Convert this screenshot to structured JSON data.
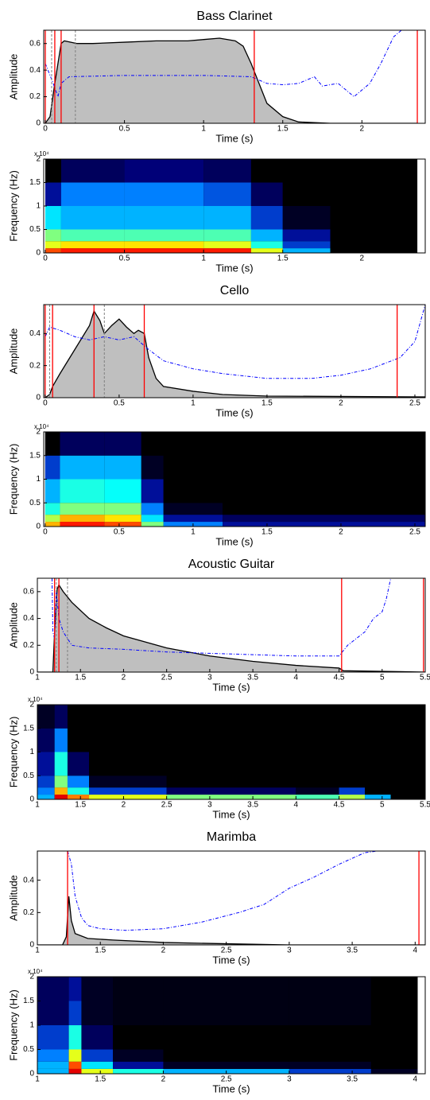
{
  "chart_data": [
    {
      "type": "envelope",
      "title": "Bass Clarinet",
      "xlabel": "Time (s)",
      "ylabel": "Amplitude",
      "xlim": [
        -0.01,
        2.4
      ],
      "ylim": [
        0,
        0.7
      ],
      "xticks": [
        0,
        0.5,
        1,
        1.5,
        2
      ],
      "yticks": [
        0,
        0.2,
        0.4,
        0.6
      ],
      "series": [
        {
          "color": "#000000",
          "fill": "#bfbfbf",
          "x": [
            0,
            0.03,
            0.06,
            0.1,
            0.12,
            0.2,
            0.3,
            0.5,
            0.7,
            0.9,
            1.0,
            1.1,
            1.2,
            1.25,
            1.3,
            1.35,
            1.4,
            1.5,
            1.6,
            1.8,
            2.35
          ],
          "values": [
            0,
            0.05,
            0.3,
            0.6,
            0.62,
            0.6,
            0.6,
            0.61,
            0.62,
            0.62,
            0.63,
            0.64,
            0.62,
            0.58,
            0.45,
            0.3,
            0.15,
            0.05,
            0.01,
            0,
            0
          ]
        },
        {
          "color": "#0000ff",
          "dash": true,
          "x": [
            0,
            0.05,
            0.08,
            0.1,
            0.15,
            0.5,
            1.0,
            1.3,
            1.4,
            1.5,
            1.6,
            1.7,
            1.75,
            1.85,
            1.95,
            2.05,
            2.12,
            2.2,
            2.25
          ],
          "values": [
            0.45,
            0.3,
            0.2,
            0.3,
            0.35,
            0.36,
            0.36,
            0.35,
            0.3,
            0.29,
            0.3,
            0.35,
            0.28,
            0.3,
            0.2,
            0.3,
            0.45,
            0.65,
            0.7
          ]
        }
      ],
      "vlines": [
        {
          "color": "#ff0000",
          "x": [
            0,
            0.06,
            0.1,
            1.32,
            2.35
          ]
        },
        {
          "color": "#808080",
          "dash": true,
          "x": [
            0.04,
            0.19
          ]
        }
      ]
    },
    {
      "type": "spectrogram",
      "xlabel": "Time (s)",
      "ylabel": "Frequency (Hz)",
      "y_multiplier": "x 10⁴",
      "xlim": [
        -0.01,
        2.4
      ],
      "ylim": [
        0,
        20000
      ],
      "xticks": [
        0,
        0.5,
        1,
        1.5,
        2
      ],
      "yticks": [
        0,
        {
          "value": 5000,
          "label": "0.5"
        },
        {
          "value": 10000,
          "label": "1"
        },
        {
          "value": 15000,
          "label": "1.5"
        },
        {
          "value": 20000,
          "label": "2"
        }
      ],
      "time_bins": [
        0,
        0.1,
        0.5,
        1,
        1.3,
        1.5,
        1.8,
        2.35
      ],
      "freq_bins": [
        0,
        1000,
        2500,
        5000,
        10000,
        15000,
        20000
      ],
      "intensity": [
        [
          0.8,
          0.85,
          0.85,
          0.85,
          0.6,
          0.3,
          0
        ],
        [
          0.6,
          0.65,
          0.65,
          0.6,
          0.4,
          0.2,
          0
        ],
        [
          0.5,
          0.45,
          0.45,
          0.45,
          0.3,
          0.15,
          0
        ],
        [
          0.35,
          0.3,
          0.3,
          0.3,
          0.2,
          0.05,
          0
        ],
        [
          0.15,
          0.25,
          0.25,
          0.22,
          0.1,
          0,
          0
        ],
        [
          0,
          0.1,
          0.12,
          0.1,
          0,
          0,
          0
        ]
      ]
    },
    {
      "type": "envelope",
      "title": "Cello",
      "xlabel": "Time (s)",
      "ylabel": "Amplitude",
      "xlim": [
        -0.01,
        2.57
      ],
      "ylim": [
        0,
        0.58
      ],
      "xticks": [
        0,
        0.5,
        1,
        1.5,
        2,
        2.5
      ],
      "yticks": [
        0,
        0.2,
        0.4
      ],
      "series": [
        {
          "color": "#000000",
          "fill": "#bfbfbf",
          "x": [
            0,
            0.03,
            0.05,
            0.1,
            0.2,
            0.3,
            0.33,
            0.37,
            0.4,
            0.45,
            0.5,
            0.55,
            0.6,
            0.63,
            0.67,
            0.7,
            0.75,
            0.8,
            1.0,
            1.2,
            1.5,
            2.57
          ],
          "values": [
            0,
            0.02,
            0.07,
            0.15,
            0.3,
            0.45,
            0.54,
            0.48,
            0.4,
            0.45,
            0.49,
            0.44,
            0.4,
            0.42,
            0.4,
            0.25,
            0.12,
            0.07,
            0.04,
            0.02,
            0.01,
            0.005
          ]
        },
        {
          "color": "#0000ff",
          "dash": true,
          "x": [
            0,
            0.03,
            0.1,
            0.2,
            0.3,
            0.4,
            0.5,
            0.6,
            0.7,
            0.8,
            1.0,
            1.2,
            1.5,
            1.8,
            2.0,
            2.2,
            2.4,
            2.5,
            2.57
          ],
          "values": [
            0.38,
            0.44,
            0.42,
            0.38,
            0.36,
            0.38,
            0.36,
            0.38,
            0.3,
            0.23,
            0.18,
            0.15,
            0.12,
            0.12,
            0.14,
            0.18,
            0.25,
            0.35,
            0.58
          ]
        }
      ],
      "vlines": [
        {
          "color": "#ff0000",
          "x": [
            0,
            0.05,
            0.33,
            0.67,
            2.38
          ]
        },
        {
          "color": "#808080",
          "dash": true,
          "x": [
            0.03,
            0.4
          ]
        }
      ]
    },
    {
      "type": "spectrogram",
      "xlabel": "Time (s)",
      "ylabel": "Frequency (Hz)",
      "y_multiplier": "x 10⁴",
      "xlim": [
        -0.01,
        2.57
      ],
      "ylim": [
        0,
        20000
      ],
      "xticks": [
        0,
        0.5,
        1,
        1.5,
        2,
        2.5
      ],
      "yticks": [
        0,
        {
          "value": 5000,
          "label": "0.5"
        },
        {
          "value": 10000,
          "label": "1"
        },
        {
          "value": 15000,
          "label": "1.5"
        },
        {
          "value": 20000,
          "label": "2"
        }
      ],
      "time_bins": [
        0,
        0.1,
        0.4,
        0.65,
        0.8,
        1.2,
        2.57
      ],
      "freq_bins": [
        0,
        1000,
        2500,
        5000,
        10000,
        15000,
        20000
      ],
      "intensity": [
        [
          0.7,
          0.85,
          0.8,
          0.5,
          0.25,
          0.15
        ],
        [
          0.55,
          0.7,
          0.65,
          0.35,
          0.15,
          0.1
        ],
        [
          0.4,
          0.5,
          0.5,
          0.25,
          0.05,
          0
        ],
        [
          0.3,
          0.4,
          0.38,
          0.15,
          0,
          0
        ],
        [
          0.2,
          0.3,
          0.3,
          0.05,
          0,
          0
        ],
        [
          0,
          0.1,
          0.1,
          0,
          0,
          0
        ]
      ]
    },
    {
      "type": "envelope",
      "title": "Acoustic Guitar",
      "xlabel": "Time (s)",
      "ylabel": "Amplitude",
      "xlim": [
        1,
        5.5
      ],
      "ylim": [
        0,
        0.7
      ],
      "xticks": [
        1,
        1.5,
        2,
        2.5,
        3,
        3.5,
        4,
        4.5,
        5,
        5.5
      ],
      "yticks": [
        0,
        0.2,
        0.4,
        0.6
      ],
      "series": [
        {
          "color": "#000000",
          "fill": "#bfbfbf",
          "x": [
            1,
            1.18,
            1.2,
            1.23,
            1.25,
            1.3,
            1.4,
            1.6,
            1.8,
            2,
            2.5,
            3,
            3.5,
            4,
            4.5,
            4.55,
            5.5
          ],
          "values": [
            0,
            0,
            0.3,
            0.62,
            0.65,
            0.6,
            0.52,
            0.4,
            0.33,
            0.27,
            0.18,
            0.12,
            0.08,
            0.05,
            0.03,
            0.01,
            0
          ]
        },
        {
          "color": "#0000ff",
          "dash": true,
          "x": [
            1.17,
            1.18,
            1.2,
            1.22,
            1.25,
            1.3,
            1.4,
            1.6,
            2,
            2.5,
            3,
            3.5,
            4,
            4.5,
            4.6,
            4.7,
            4.8,
            4.9,
            5,
            5.05,
            5.1
          ],
          "values": [
            0.7,
            0.3,
            0.25,
            0.6,
            0.4,
            0.3,
            0.2,
            0.18,
            0.17,
            0.15,
            0.14,
            0.13,
            0.12,
            0.12,
            0.2,
            0.25,
            0.3,
            0.4,
            0.45,
            0.55,
            0.7
          ]
        }
      ],
      "vlines": [
        {
          "color": "#ff0000",
          "x": [
            1.2,
            1.25,
            4.53,
            5.48
          ]
        },
        {
          "color": "#808080",
          "dash": true,
          "x": [
            1.22,
            1.35
          ]
        }
      ]
    },
    {
      "type": "spectrogram",
      "xlabel": "Time (s)",
      "ylabel": "Frequency (Hz)",
      "y_multiplier": "x 10⁴",
      "xlim": [
        1,
        5.5
      ],
      "ylim": [
        0,
        20000
      ],
      "xticks": [
        1,
        1.5,
        2,
        2.5,
        3,
        3.5,
        4,
        4.5,
        5,
        5.5
      ],
      "yticks": [
        0,
        {
          "value": 5000,
          "label": "0.5"
        },
        {
          "value": 10000,
          "label": "1"
        },
        {
          "value": 15000,
          "label": "1.5"
        },
        {
          "value": 20000,
          "label": "2"
        }
      ],
      "time_bins": [
        1,
        1.2,
        1.35,
        1.6,
        2.5,
        4,
        4.5,
        4.8,
        5.1,
        5.5
      ],
      "freq_bins": [
        0,
        1000,
        2500,
        5000,
        10000,
        15000,
        20000
      ],
      "intensity": [
        [
          0.3,
          0.9,
          0.75,
          0.6,
          0.5,
          0.45,
          0.55,
          0.3,
          0
        ],
        [
          0.25,
          0.7,
          0.4,
          0.2,
          0.1,
          0.05,
          0.2,
          0,
          0
        ],
        [
          0.2,
          0.5,
          0.25,
          0.05,
          0,
          0,
          0,
          0,
          0
        ],
        [
          0.15,
          0.4,
          0.1,
          0,
          0,
          0,
          0,
          0,
          0
        ],
        [
          0.1,
          0.25,
          0,
          0,
          0,
          0,
          0,
          0,
          0
        ],
        [
          0.05,
          0.1,
          0,
          0,
          0,
          0,
          0,
          0,
          0
        ]
      ]
    },
    {
      "type": "envelope",
      "title": "Marimba",
      "xlabel": "Time (s)",
      "ylabel": "Amplitude",
      "xlim": [
        1,
        4.08
      ],
      "ylim": [
        0,
        0.58
      ],
      "xticks": [
        1,
        1.5,
        2,
        2.5,
        3,
        3.5,
        4
      ],
      "yticks": [
        0,
        0.2,
        0.4
      ],
      "series": [
        {
          "color": "#000000",
          "fill": "#bfbfbf",
          "x": [
            1,
            1.2,
            1.23,
            1.25,
            1.27,
            1.3,
            1.4,
            1.6,
            2,
            2.5,
            3,
            4.08
          ],
          "values": [
            0,
            0,
            0.05,
            0.3,
            0.15,
            0.07,
            0.04,
            0.03,
            0.015,
            0.007,
            0,
            0
          ]
        },
        {
          "color": "#0000ff",
          "dash": true,
          "x": [
            1.24,
            1.27,
            1.3,
            1.35,
            1.4,
            1.5,
            1.7,
            2,
            2.3,
            2.6,
            2.8,
            3,
            3.2,
            3.4,
            3.6,
            3.7
          ],
          "values": [
            0.58,
            0.5,
            0.3,
            0.17,
            0.12,
            0.1,
            0.09,
            0.1,
            0.14,
            0.2,
            0.25,
            0.35,
            0.42,
            0.5,
            0.57,
            0.58
          ]
        }
      ],
      "vlines": [
        {
          "color": "#ff0000",
          "x": [
            1.24,
            4.03
          ]
        }
      ]
    },
    {
      "type": "spectrogram",
      "xlabel": "Time (s)",
      "ylabel": "Frequency (Hz)",
      "y_multiplier": "x 10⁴",
      "xlim": [
        1,
        4.08
      ],
      "ylim": [
        0,
        20000
      ],
      "xticks": [
        1,
        1.5,
        2,
        2.5,
        3,
        3.5,
        4
      ],
      "yticks": [
        0,
        {
          "value": 5000,
          "label": "0.5"
        },
        {
          "value": 10000,
          "label": "1"
        },
        {
          "value": 15000,
          "label": "1.5"
        },
        {
          "value": 20000,
          "label": "2"
        }
      ],
      "time_bins": [
        1,
        1.25,
        1.35,
        1.6,
        2,
        3,
        3.65,
        4.02
      ],
      "freq_bins": [
        0,
        1000,
        2500,
        5000,
        10000,
        15000,
        20000
      ],
      "intensity": [
        [
          0.3,
          0.9,
          0.6,
          0.4,
          0.3,
          0.2,
          0.05
        ],
        [
          0.3,
          0.8,
          0.35,
          0.15,
          0.05,
          0.05,
          0
        ],
        [
          0.25,
          0.6,
          0.2,
          0.05,
          0,
          0,
          0
        ],
        [
          0.2,
          0.4,
          0.1,
          0,
          0,
          0,
          0
        ],
        [
          0.1,
          0.2,
          0.05,
          0.03,
          0.03,
          0.03,
          0
        ],
        [
          0.1,
          0.15,
          0.05,
          0.03,
          0.03,
          0.03,
          0
        ]
      ]
    }
  ]
}
